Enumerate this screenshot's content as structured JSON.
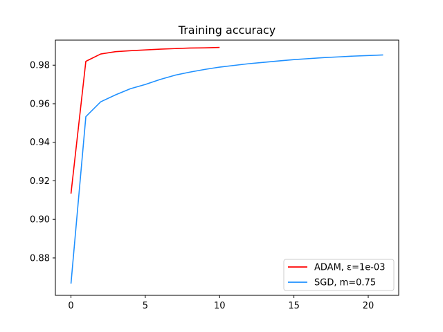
{
  "chart_data": {
    "type": "line",
    "title": "Training accuracy",
    "xlabel": "",
    "ylabel": "",
    "xlim": [
      -1.05,
      22.05
    ],
    "ylim": [
      0.8606,
      0.993
    ],
    "xticks": [
      0,
      5,
      10,
      15,
      20
    ],
    "xtick_labels": [
      "0",
      "5",
      "10",
      "15",
      "20"
    ],
    "yticks": [
      0.88,
      0.9,
      0.92,
      0.94,
      0.96,
      0.98
    ],
    "ytick_labels": [
      "0.88",
      "0.90",
      "0.92",
      "0.94",
      "0.96",
      "0.98"
    ],
    "grid": false,
    "legend_position": "bottom-right",
    "series": [
      {
        "name": "ADAM, ε=1e-03",
        "color": "#ff0000",
        "x": [
          0,
          1,
          2,
          3,
          4,
          5,
          6,
          7,
          8,
          9,
          10
        ],
        "y": [
          0.9134,
          0.982,
          0.9858,
          0.987,
          0.9875,
          0.9879,
          0.9883,
          0.9886,
          0.9889,
          0.989,
          0.9892
        ]
      },
      {
        "name": "SGD, m=0.75",
        "color": "#1e90ff",
        "x": [
          0,
          1,
          2,
          3,
          4,
          5,
          6,
          7,
          8,
          9,
          10,
          11,
          12,
          13,
          14,
          15,
          16,
          17,
          18,
          19,
          20,
          21
        ],
        "y": [
          0.8667,
          0.9533,
          0.961,
          0.9646,
          0.9678,
          0.97,
          0.9726,
          0.9748,
          0.9764,
          0.9778,
          0.979,
          0.9799,
          0.9808,
          0.9815,
          0.9822,
          0.9829,
          0.9834,
          0.9839,
          0.9843,
          0.9847,
          0.985,
          0.9853
        ]
      }
    ]
  }
}
